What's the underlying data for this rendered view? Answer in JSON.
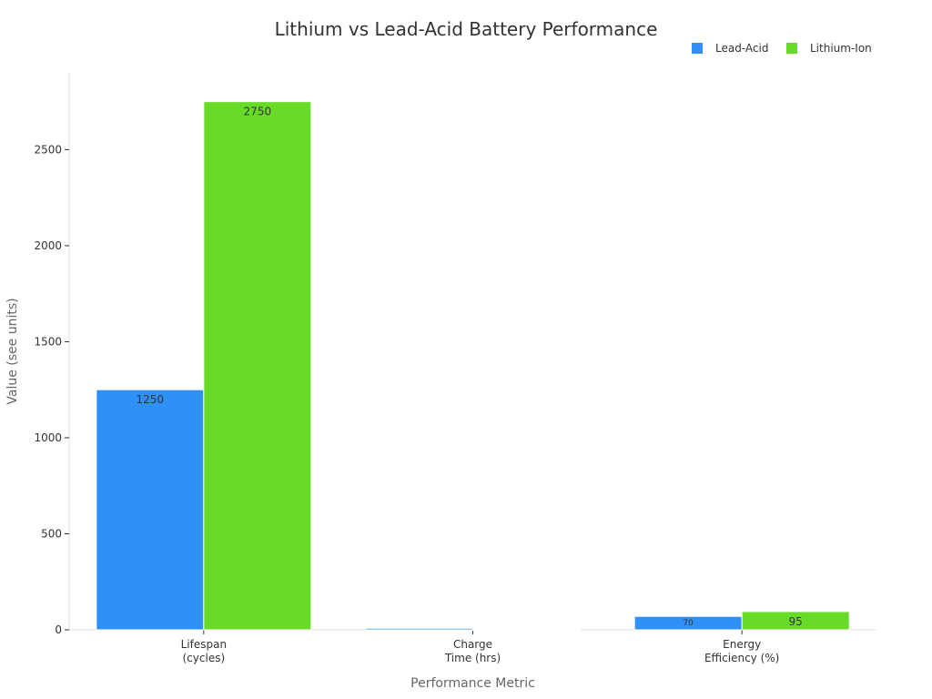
{
  "chart_data": {
    "type": "bar",
    "title": "Lithium vs Lead-Acid Battery Performance",
    "xlabel": "Performance Metric",
    "ylabel": "Value (see units)",
    "categories": [
      [
        "Lifespan",
        "(cycles)"
      ],
      [
        "Charge",
        "Time (hrs)"
      ],
      [
        "Energy",
        "Efficiency (%)"
      ]
    ],
    "series": [
      {
        "name": "Lead-Acid",
        "color": "#2f91f8",
        "values": [
          1250,
          8,
          70
        ],
        "labels": [
          "1250",
          "",
          "70"
        ]
      },
      {
        "name": "Lithium-Ion",
        "color": "#68db27",
        "values": [
          2750,
          2,
          95
        ],
        "labels": [
          "2750",
          "",
          "95"
        ]
      }
    ],
    "yticks": [
      0,
      500,
      1000,
      1500,
      2000,
      2500
    ],
    "ylim": [
      0,
      2900
    ],
    "grid": false,
    "legend": "top-right"
  }
}
